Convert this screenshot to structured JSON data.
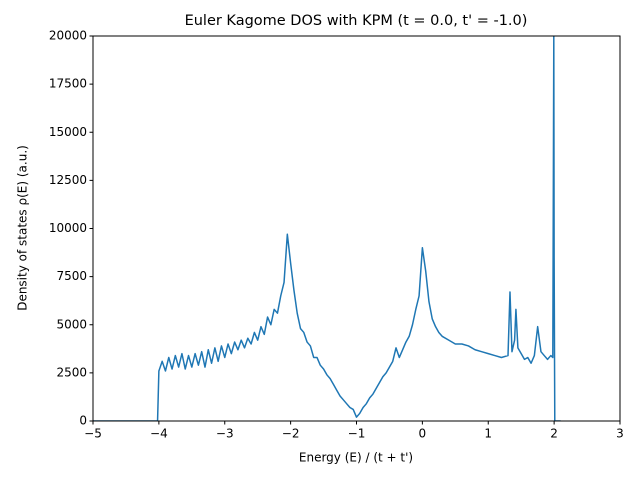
{
  "chart_data": {
    "type": "line",
    "title": "Euler Kagome DOS with KPM (t = 0.0, t' = -1.0)",
    "x_label": "Energy (E) / (t + t')",
    "y_label": "Density of states ρ(E) (a.u.)",
    "xlim": [
      -5,
      3
    ],
    "ylim": [
      0,
      20000
    ],
    "xticks": [
      {
        "value": -5,
        "label": "−5"
      },
      {
        "value": -4,
        "label": "−4"
      },
      {
        "value": -3,
        "label": "−3"
      },
      {
        "value": -2,
        "label": "−2"
      },
      {
        "value": -1,
        "label": "−1"
      },
      0,
      1,
      2,
      3
    ],
    "yticks": [
      0,
      2500,
      5000,
      7500,
      10000,
      12500,
      15000,
      17500,
      20000
    ],
    "grid": false,
    "series": [
      {
        "color": "#1f77b4",
        "x": [
          -5,
          -4.02,
          -4.0,
          -3.95,
          -3.9,
          -3.85,
          -3.8,
          -3.75,
          -3.7,
          -3.65,
          -3.6,
          -3.55,
          -3.5,
          -3.45,
          -3.4,
          -3.35,
          -3.3,
          -3.25,
          -3.2,
          -3.15,
          -3.1,
          -3.05,
          -3.0,
          -2.95,
          -2.9,
          -2.85,
          -2.8,
          -2.75,
          -2.7,
          -2.65,
          -2.6,
          -2.55,
          -2.5,
          -2.45,
          -2.4,
          -2.35,
          -2.3,
          -2.25,
          -2.2,
          -2.15,
          -2.1,
          -2.05,
          -2.0,
          -1.95,
          -1.9,
          -1.85,
          -1.8,
          -1.75,
          -1.7,
          -1.65,
          -1.6,
          -1.55,
          -1.5,
          -1.45,
          -1.4,
          -1.35,
          -1.3,
          -1.25,
          -1.2,
          -1.15,
          -1.1,
          -1.05,
          -1.0,
          -0.95,
          -0.9,
          -0.85,
          -0.8,
          -0.75,
          -0.7,
          -0.65,
          -0.6,
          -0.55,
          -0.5,
          -0.45,
          -0.4,
          -0.35,
          -0.3,
          -0.25,
          -0.2,
          -0.15,
          -0.1,
          -0.05,
          0.0,
          0.05,
          0.1,
          0.15,
          0.2,
          0.25,
          0.3,
          0.4,
          0.5,
          0.6,
          0.7,
          0.8,
          0.9,
          1.0,
          1.1,
          1.2,
          1.3,
          1.33,
          1.36,
          1.4,
          1.42,
          1.45,
          1.5,
          1.55,
          1.6,
          1.65,
          1.7,
          1.75,
          1.8,
          1.85,
          1.9,
          1.95,
          1.98,
          1.995,
          2.0,
          2.01,
          2.05,
          2.1
        ],
        "values": [
          0,
          0,
          2600,
          3100,
          2600,
          3300,
          2700,
          3400,
          2800,
          3500,
          2700,
          3400,
          2800,
          3500,
          2900,
          3600,
          2800,
          3700,
          3000,
          3800,
          3100,
          3900,
          3300,
          4000,
          3500,
          4100,
          3700,
          4200,
          3800,
          4300,
          4000,
          4600,
          4200,
          4900,
          4500,
          5400,
          5000,
          5800,
          5600,
          6500,
          7200,
          9700,
          8200,
          6800,
          5600,
          4800,
          4600,
          4100,
          3900,
          3300,
          3300,
          2900,
          2700,
          2400,
          2200,
          1900,
          1600,
          1300,
          1100,
          900,
          700,
          600,
          200,
          400,
          700,
          900,
          1200,
          1400,
          1700,
          2000,
          2300,
          2500,
          2800,
          3100,
          3800,
          3300,
          3700,
          4100,
          4400,
          5000,
          5800,
          6500,
          9000,
          7800,
          6200,
          5300,
          4900,
          4600,
          4400,
          4200,
          4000,
          4000,
          3900,
          3700,
          3600,
          3500,
          3400,
          3300,
          3400,
          6700,
          3600,
          4200,
          5800,
          3800,
          3500,
          3200,
          3300,
          3000,
          3400,
          4900,
          3600,
          3400,
          3200,
          3400,
          3300,
          20000,
          8500,
          0,
          0,
          0
        ]
      }
    ]
  }
}
